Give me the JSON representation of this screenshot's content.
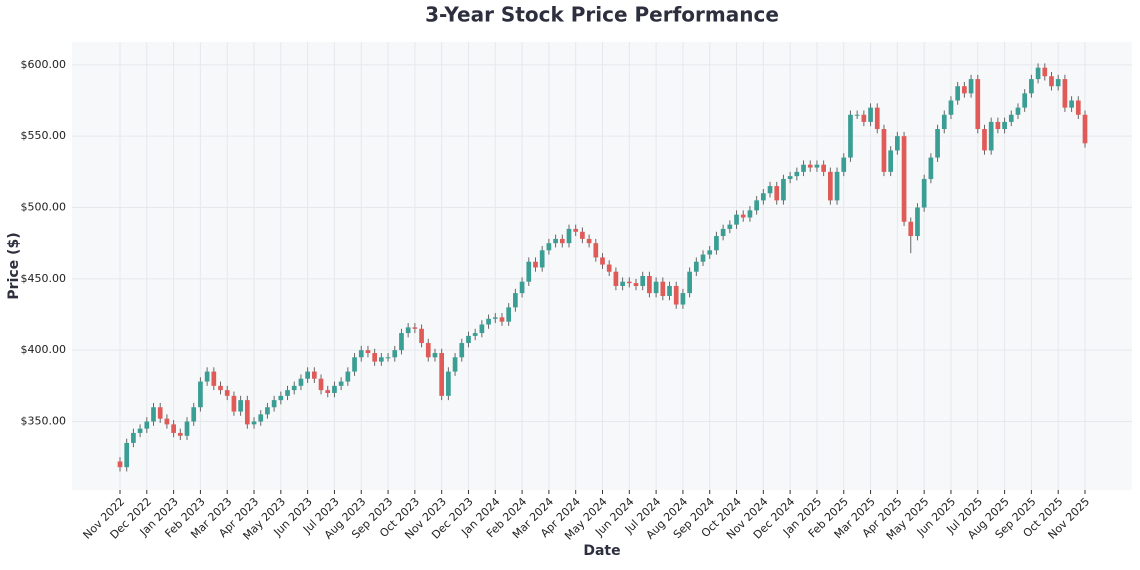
{
  "chart_data": {
    "type": "candlestick",
    "title": "3-Year Stock Price Performance",
    "x_label": "Date",
    "y_label": "Price ($)",
    "categories": [
      "Nov 2022",
      null,
      null,
      null,
      "Dec 2022",
      null,
      null,
      null,
      "Jan 2023",
      null,
      null,
      null,
      "Feb 2023",
      null,
      null,
      null,
      "Mar 2023",
      null,
      null,
      null,
      "Apr 2023",
      null,
      null,
      null,
      "May 2023",
      null,
      null,
      null,
      "Jun 2023",
      null,
      null,
      null,
      "Jul 2023",
      null,
      null,
      null,
      "Aug 2023",
      null,
      null,
      null,
      "Sep 2023",
      null,
      null,
      null,
      "Oct 2023",
      null,
      null,
      null,
      "Nov 2023",
      null,
      null,
      null,
      "Dec 2023",
      null,
      null,
      null,
      "Jan 2024",
      null,
      null,
      null,
      "Feb 2024",
      null,
      null,
      null,
      "Mar 2024",
      null,
      null,
      null,
      "Apr 2024",
      null,
      null,
      null,
      "May 2024",
      null,
      null,
      null,
      "Jun 2024",
      null,
      null,
      null,
      "Jul 2024",
      null,
      null,
      null,
      "Aug 2024",
      null,
      null,
      null,
      "Sep 2024",
      null,
      null,
      null,
      "Oct 2024",
      null,
      null,
      null,
      "Nov 2024",
      null,
      null,
      null,
      "Dec 2024",
      null,
      null,
      null,
      "Jan 2025",
      null,
      null,
      null,
      "Feb 2025",
      null,
      null,
      null,
      "Mar 2025",
      null,
      null,
      null,
      "Apr 2025",
      null,
      null,
      null,
      "May 2025",
      null,
      null,
      null,
      "Jun 2025",
      null,
      null,
      null,
      "Jul 2025",
      null,
      null,
      null,
      "Aug 2025",
      null,
      null,
      null,
      "Sep 2025",
      null,
      null,
      null,
      "Oct 2025",
      null,
      null,
      null,
      "Nov 2025"
    ],
    "open": [
      322,
      318,
      335,
      342,
      345,
      350,
      360,
      352,
      348,
      342,
      340,
      350,
      360,
      378,
      385,
      375,
      372,
      368,
      357,
      365,
      348,
      350,
      355,
      360,
      365,
      368,
      372,
      375,
      380,
      385,
      380,
      372,
      370,
      375,
      378,
      385,
      395,
      400,
      398,
      392,
      395,
      395,
      400,
      412,
      416,
      415,
      405,
      395,
      398,
      368,
      385,
      395,
      405,
      410,
      412,
      418,
      422,
      423,
      420,
      430,
      440,
      448,
      462,
      458,
      470,
      475,
      478,
      475,
      485,
      483,
      478,
      475,
      465,
      460,
      455,
      445,
      448,
      447,
      445,
      452,
      440,
      448,
      438,
      445,
      432,
      440,
      455,
      462,
      467,
      470,
      480,
      485,
      488,
      495,
      493,
      498,
      505,
      510,
      515,
      505,
      520,
      522,
      525,
      530,
      528,
      530,
      525,
      505,
      525,
      535,
      565,
      565,
      560,
      570,
      555,
      525,
      540,
      550,
      490,
      480,
      500,
      520,
      535,
      555,
      565,
      575,
      585,
      580,
      590,
      555,
      540,
      560,
      555,
      560,
      565,
      570,
      580,
      590,
      598,
      592,
      585,
      590,
      570,
      575,
      565
    ],
    "high": [
      325,
      338,
      345,
      348,
      353,
      363,
      363,
      355,
      351,
      345,
      353,
      363,
      381,
      388,
      388,
      378,
      375,
      371,
      368,
      368,
      353,
      358,
      363,
      368,
      371,
      375,
      378,
      383,
      388,
      388,
      383,
      375,
      378,
      381,
      388,
      398,
      403,
      403,
      401,
      398,
      398,
      403,
      415,
      419,
      419,
      418,
      408,
      401,
      401,
      388,
      398,
      408,
      413,
      415,
      421,
      425,
      426,
      426,
      433,
      443,
      451,
      465,
      465,
      473,
      478,
      481,
      481,
      488,
      488,
      486,
      481,
      478,
      468,
      463,
      458,
      451,
      451,
      450,
      455,
      455,
      451,
      451,
      448,
      448,
      443,
      458,
      465,
      470,
      473,
      483,
      488,
      491,
      498,
      498,
      501,
      508,
      513,
      518,
      518,
      523,
      525,
      528,
      533,
      533,
      533,
      533,
      528,
      528,
      538,
      568,
      568,
      568,
      573,
      573,
      558,
      543,
      553,
      553,
      493,
      503,
      523,
      538,
      558,
      568,
      578,
      588,
      588,
      593,
      593,
      558,
      563,
      563,
      563,
      568,
      573,
      583,
      593,
      601,
      601,
      595,
      593,
      593,
      578,
      578,
      568
    ],
    "low": [
      315,
      315,
      332,
      339,
      342,
      347,
      349,
      345,
      339,
      337,
      337,
      347,
      357,
      375,
      372,
      369,
      365,
      354,
      354,
      345,
      345,
      347,
      352,
      357,
      362,
      365,
      369,
      372,
      377,
      377,
      369,
      367,
      367,
      372,
      375,
      382,
      392,
      395,
      389,
      389,
      392,
      392,
      397,
      409,
      412,
      402,
      392,
      392,
      365,
      365,
      382,
      392,
      402,
      407,
      409,
      415,
      419,
      417,
      417,
      427,
      437,
      445,
      455,
      455,
      467,
      472,
      472,
      472,
      480,
      475,
      472,
      462,
      457,
      452,
      442,
      442,
      444,
      442,
      442,
      437,
      437,
      435,
      435,
      429,
      429,
      437,
      452,
      459,
      464,
      467,
      477,
      482,
      485,
      490,
      490,
      495,
      502,
      507,
      502,
      502,
      517,
      519,
      522,
      525,
      525,
      522,
      502,
      502,
      522,
      532,
      562,
      557,
      557,
      552,
      522,
      522,
      537,
      487,
      468,
      477,
      497,
      517,
      532,
      552,
      562,
      572,
      577,
      577,
      552,
      537,
      537,
      552,
      552,
      557,
      562,
      567,
      577,
      587,
      589,
      582,
      582,
      567,
      567,
      562,
      542
    ],
    "close": [
      318,
      335,
      342,
      345,
      350,
      360,
      352,
      348,
      342,
      340,
      350,
      360,
      378,
      385,
      375,
      372,
      368,
      357,
      365,
      348,
      350,
      355,
      360,
      365,
      368,
      372,
      375,
      380,
      385,
      380,
      372,
      370,
      375,
      378,
      385,
      395,
      400,
      398,
      392,
      395,
      395,
      400,
      412,
      416,
      415,
      405,
      395,
      398,
      368,
      385,
      395,
      405,
      410,
      412,
      418,
      422,
      423,
      420,
      430,
      440,
      448,
      462,
      458,
      470,
      475,
      478,
      475,
      485,
      483,
      478,
      475,
      465,
      460,
      455,
      445,
      448,
      447,
      445,
      452,
      440,
      448,
      438,
      445,
      432,
      440,
      455,
      462,
      467,
      470,
      480,
      485,
      488,
      495,
      493,
      498,
      505,
      510,
      515,
      505,
      520,
      522,
      525,
      530,
      528,
      530,
      525,
      505,
      525,
      535,
      565,
      565,
      560,
      570,
      555,
      525,
      540,
      550,
      490,
      480,
      500,
      520,
      535,
      555,
      565,
      575,
      585,
      580,
      590,
      555,
      540,
      560,
      555,
      560,
      565,
      570,
      580,
      590,
      598,
      592,
      585,
      590,
      570,
      575,
      565,
      545
    ],
    "up_color": "#3a9e94",
    "down_color": "#e05a57",
    "ylim": [
      302,
      616
    ],
    "yticks": [
      {
        "value": 350,
        "label": "$350.00"
      },
      {
        "value": 400,
        "label": "$400.00"
      },
      {
        "value": 450,
        "label": "$450.00"
      },
      {
        "value": 500,
        "label": "$500.00"
      },
      {
        "value": 550,
        "label": "$550.00"
      },
      {
        "value": 600,
        "label": "$600.00"
      }
    ],
    "grid": true
  }
}
